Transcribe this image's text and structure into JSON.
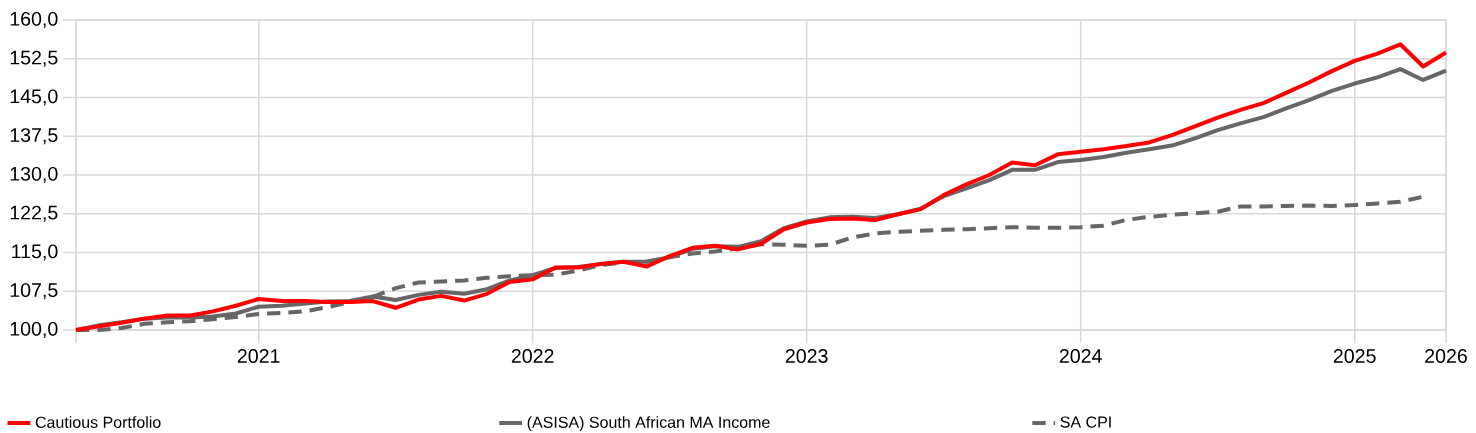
{
  "chart_data": {
    "type": "line",
    "x": [
      "2021-04",
      "2021-05",
      "2021-06",
      "2021-07",
      "2021-08",
      "2021-09",
      "2021-10",
      "2021-11",
      "2021-12",
      "2022-01",
      "2022-02",
      "2022-03",
      "2022-04",
      "2022-05",
      "2022-06",
      "2022-07",
      "2022-08",
      "2022-09",
      "2022-10",
      "2022-11",
      "2022-12",
      "2023-01",
      "2023-02",
      "2023-03",
      "2023-04",
      "2023-05",
      "2023-06",
      "2023-07",
      "2023-08",
      "2023-09",
      "2023-10",
      "2023-11",
      "2023-12",
      "2024-01",
      "2024-02",
      "2024-03",
      "2024-04",
      "2024-05",
      "2024-06",
      "2024-07",
      "2024-08",
      "2024-09",
      "2024-10",
      "2024-11",
      "2024-12",
      "2025-01",
      "2025-02",
      "2025-03",
      "2025-04",
      "2025-05",
      "2025-06",
      "2025-07",
      "2025-08",
      "2025-09",
      "2025-10",
      "2025-11",
      "2025-12",
      "2026-01",
      "2026-02",
      "2026-03",
      "2026-04"
    ],
    "series": [
      {
        "name": "Cautious Portfolio",
        "color": "#ff0000",
        "values": [
          100.0,
          100.7,
          101.4,
          102.2,
          102.8,
          102.8,
          103.6,
          104.7,
          106.0,
          105.6,
          105.6,
          105.4,
          105.4,
          105.6,
          104.3,
          105.9,
          106.6,
          105.7,
          107.0,
          109.3,
          109.8,
          112.1,
          112.1,
          112.8,
          113.2,
          112.3,
          114.3,
          115.9,
          116.3,
          115.6,
          116.7,
          119.5,
          120.8,
          121.5,
          121.6,
          121.3,
          122.4,
          123.4,
          126.1,
          128.2,
          130.0,
          132.4,
          131.9,
          134.0,
          134.5,
          135.0,
          135.6,
          136.3,
          137.7,
          139.4,
          141.1,
          142.6,
          143.9,
          145.9,
          147.9,
          150.1,
          152.1,
          153.5,
          155.3,
          151.0,
          153.7
        ]
      },
      {
        "name": "(ASISA) South African MA Income",
        "color": "#666666",
        "values": [
          100.0,
          100.9,
          101.5,
          102.2,
          102.4,
          102.4,
          102.6,
          103.2,
          104.5,
          104.7,
          105.1,
          105.5,
          105.6,
          106.5,
          105.8,
          106.8,
          107.4,
          107.0,
          107.9,
          109.6,
          110.6,
          112.0,
          112.2,
          112.8,
          113.2,
          113.2,
          114.1,
          115.7,
          116.2,
          116.1,
          117.2,
          119.7,
          121.0,
          121.8,
          121.9,
          121.7,
          122.4,
          123.5,
          125.9,
          127.4,
          129.0,
          131.0,
          131.0,
          132.5,
          132.9,
          133.5,
          134.3,
          135.0,
          135.7,
          137.1,
          138.7,
          140.0,
          141.2,
          142.9,
          144.5,
          146.3,
          147.7,
          148.9,
          150.5,
          148.4,
          150.2
        ]
      },
      {
        "name": "SA CPI",
        "color": "#666666",
        "line_style": "dashed",
        "values": [
          100.0,
          100.0,
          100.4,
          101.2,
          101.5,
          101.7,
          102.1,
          102.5,
          103.1,
          103.3,
          103.6,
          104.4,
          105.4,
          106.4,
          108.1,
          109.2,
          109.4,
          109.6,
          110.1,
          110.4,
          110.6,
          110.7,
          111.5,
          112.6,
          113.1,
          113.2,
          114.1,
          114.8,
          115.2,
          115.8,
          116.6,
          116.5,
          116.3,
          116.5,
          117.9,
          118.7,
          119.0,
          119.2,
          119.4,
          119.5,
          119.7,
          119.9,
          119.8,
          119.8,
          119.9,
          120.2,
          121.3,
          121.9,
          122.3,
          122.6,
          122.9,
          123.9,
          123.9,
          124.0,
          124.1,
          124.0,
          124.2,
          124.5,
          124.8,
          125.8,
          null
        ]
      }
    ],
    "xlim": [
      "2021-04",
      "2026-04"
    ],
    "xticks": [
      {
        "value": "2021-04",
        "label": null
      },
      {
        "value": "2021-12",
        "label": "2021"
      },
      {
        "value": "2022-12",
        "label": "2022"
      },
      {
        "value": "2023-12",
        "label": "2023"
      },
      {
        "value": "2024-12",
        "label": "2024"
      },
      {
        "value": "2025-12",
        "label": "2025"
      },
      {
        "value": "2026-04",
        "label": "2026"
      }
    ],
    "ylim": [
      100,
      160
    ],
    "yticks": [
      {
        "value": 100,
        "label": "100,0"
      },
      {
        "value": 107.5,
        "label": "107,5"
      },
      {
        "value": 115,
        "label": "115,0"
      },
      {
        "value": 122.5,
        "label": "122,5"
      },
      {
        "value": 130,
        "label": "130,0"
      },
      {
        "value": 137.5,
        "label": "137,5"
      },
      {
        "value": 145,
        "label": "145,0"
      },
      {
        "value": 152.5,
        "label": "152,5"
      },
      {
        "value": 160,
        "label": "160,0"
      }
    ],
    "grid": true,
    "legend": "bottom",
    "line_style": "solid"
  }
}
